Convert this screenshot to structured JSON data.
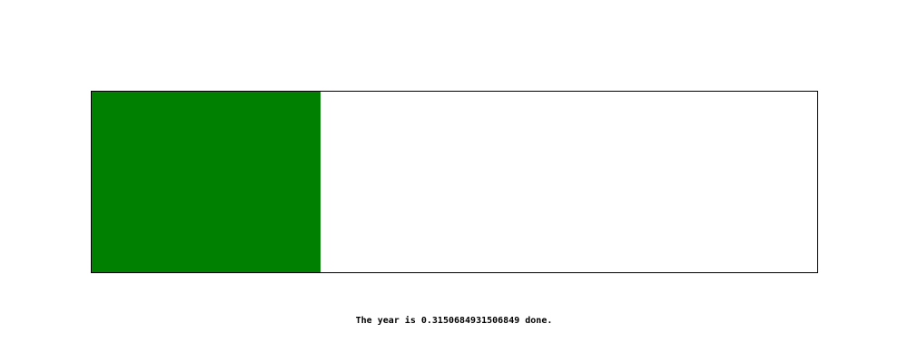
{
  "progress": {
    "fraction": 0.3150684931506849,
    "fill_color": "#008000",
    "track_color": "#ffffff",
    "border_color": "#000000"
  },
  "status": {
    "text": "The year is 0.3150684931506849 done."
  }
}
